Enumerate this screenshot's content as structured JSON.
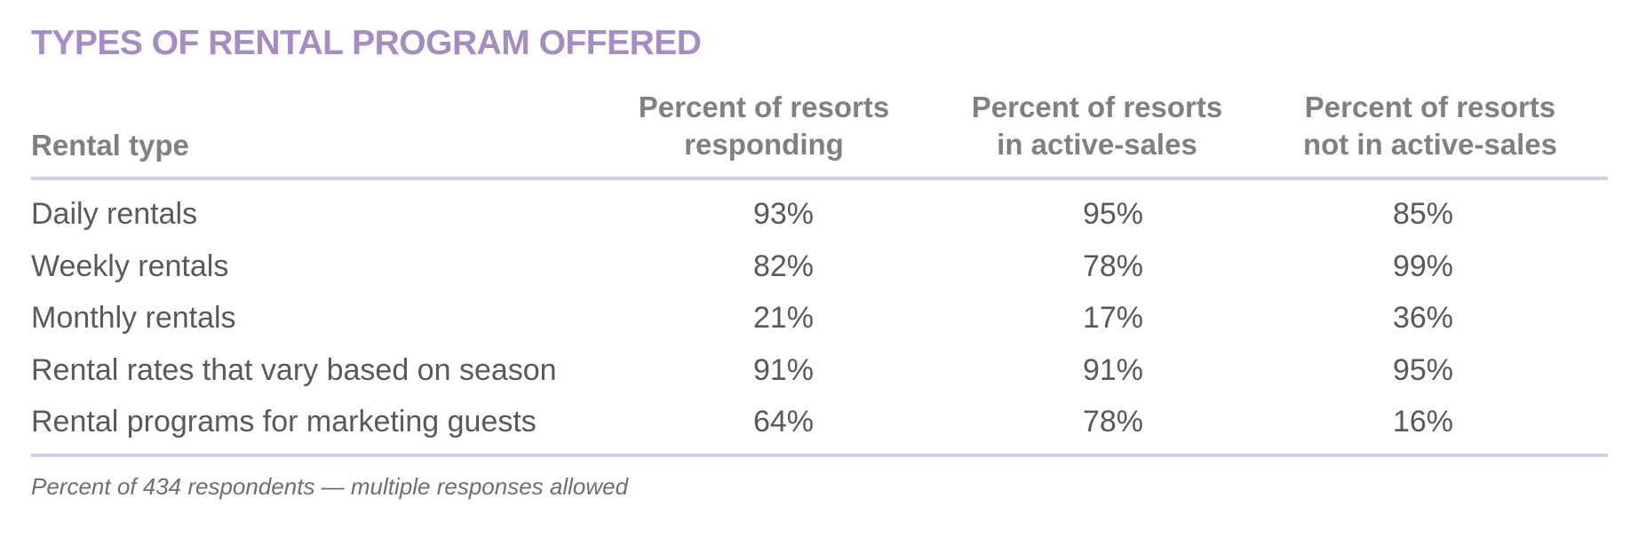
{
  "title": "TYPES OF RENTAL PROGRAM OFFERED",
  "headers": {
    "rental_type": "Rental type",
    "col1": [
      "Percent of resorts",
      "responding"
    ],
    "col2": [
      "Percent of resorts",
      "in active-sales"
    ],
    "col3": [
      "Percent of resorts",
      "not in active-sales"
    ]
  },
  "rows": [
    {
      "type": "Daily rentals",
      "responding": "93%",
      "active": "95%",
      "not_active": "85%"
    },
    {
      "type": "Weekly rentals",
      "responding": "82%",
      "active": "78%",
      "not_active": "99%"
    },
    {
      "type": "Monthly rentals",
      "responding": "21%",
      "active": "17%",
      "not_active": "36%"
    },
    {
      "type": "Rental rates that vary based on season",
      "responding": "91%",
      "active": "91%",
      "not_active": "95%"
    },
    {
      "type": "Rental programs for marketing guests",
      "responding": "64%",
      "active": "78%",
      "not_active": "16%"
    }
  ],
  "footnote": "Percent of 434 respondents — multiple responses allowed",
  "colors": {
    "title": "#a68bc4",
    "rule": "#d4cbe4",
    "header": "#7f8084",
    "body": "#58595b"
  }
}
